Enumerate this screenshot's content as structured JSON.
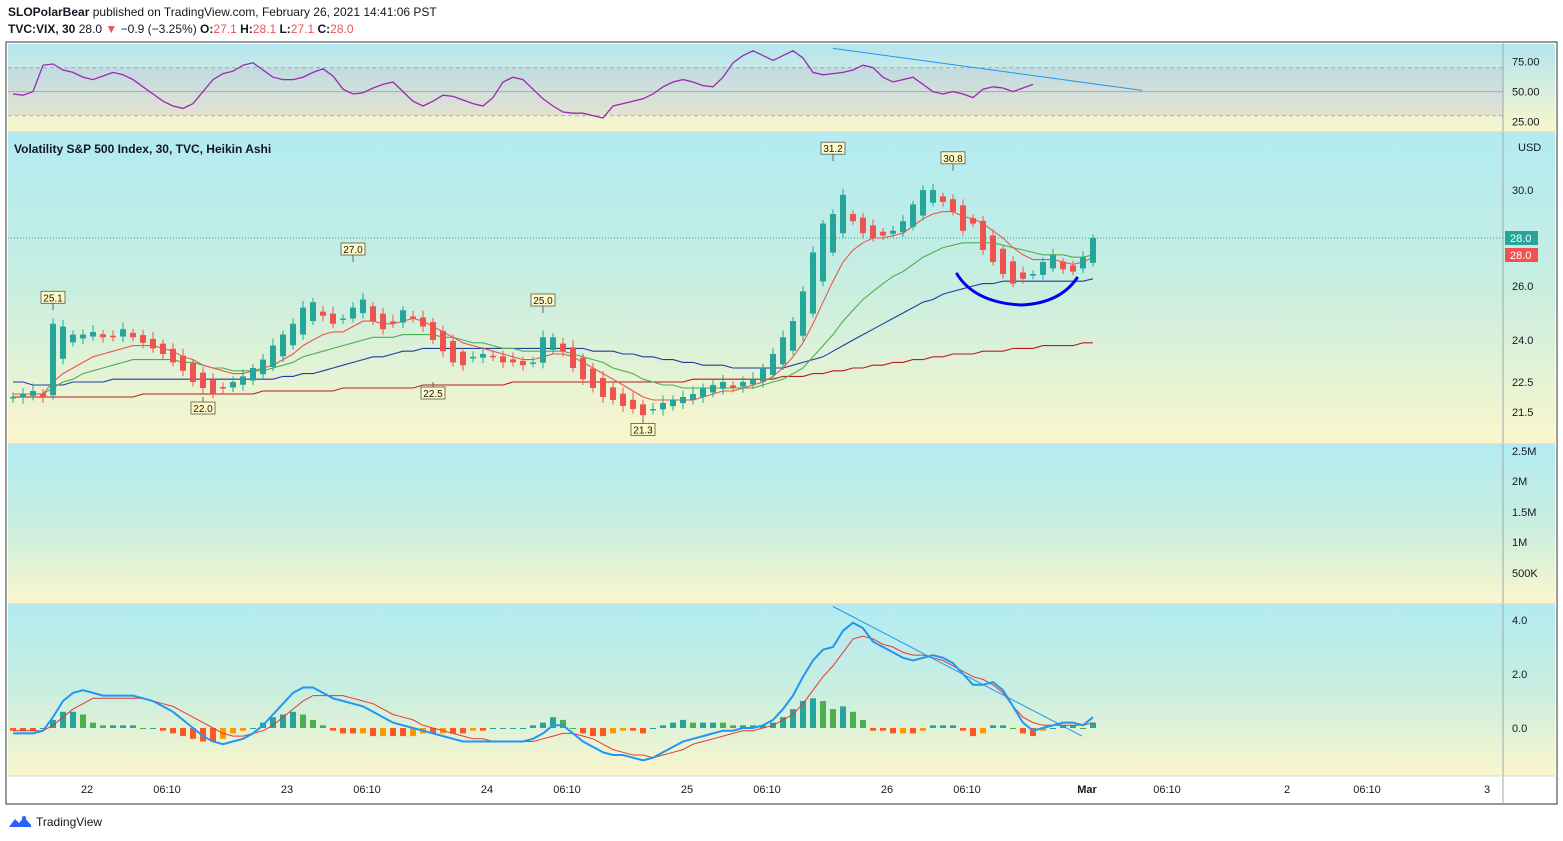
{
  "header": {
    "publisher": "SLOPolarBear",
    "published_text": "published on TradingView.com, February 26, 2021 14:41:06 PST",
    "symbol": "TVC:VIX, 30",
    "last": "28.0",
    "change": "−0.9 (−3.25%)",
    "o_label": "O:",
    "o": "27.1",
    "h_label": "H:",
    "h": "28.1",
    "l_label": "L:",
    "l": "27.1",
    "c_label": "C:",
    "c": "28.0"
  },
  "main_title": "Volatility S&P 500 Index, 30, TVC, Heikin Ashi",
  "footer_brand": "TradingView",
  "colors": {
    "up": "#26a69a",
    "down": "#ef5350",
    "ema_fast": "#ef5350",
    "ema_mid": "#4caf50",
    "ema_slow": "#1e3fa0",
    "sma_long": "#b71c1c",
    "rsi": "#9c27b0",
    "macd": "#2196f3",
    "signal": "#e53935",
    "hist_up": "#26a69a",
    "hist_up2": "#4caf50",
    "hist_down": "#ff5722",
    "hist_down2": "#ff9800",
    "annotation": "#0000ee"
  },
  "chart_data": [
    {
      "type": "line",
      "name": "rsi-panel",
      "y_ticks": [
        "75.00",
        "50.00",
        "25.00"
      ],
      "y_tick_values": [
        75,
        50,
        25
      ],
      "ylim": [
        18,
        88
      ],
      "bands": [
        70,
        50,
        30
      ],
      "values": [
        48,
        47,
        50,
        72,
        73,
        68,
        66,
        62,
        60,
        63,
        66,
        64,
        60,
        54,
        48,
        42,
        38,
        36,
        40,
        50,
        60,
        65,
        67,
        72,
        74,
        68,
        62,
        60,
        60,
        62,
        66,
        69,
        63,
        52,
        48,
        49,
        53,
        56,
        58,
        50,
        42,
        38,
        42,
        47,
        46,
        43,
        40,
        38,
        45,
        58,
        62,
        60,
        52,
        44,
        38,
        33,
        32,
        32,
        30,
        28,
        38,
        40,
        42,
        44,
        48,
        54,
        58,
        60,
        58,
        55,
        54,
        62,
        74,
        80,
        84,
        80,
        76,
        80,
        84,
        78,
        66,
        64,
        65,
        66,
        68,
        72,
        70,
        62,
        58,
        60,
        62,
        56,
        50,
        48,
        50,
        48,
        45,
        52,
        54,
        53,
        50,
        53,
        56
      ]
    },
    {
      "type": "candlestick",
      "name": "price-panel",
      "currency": "USD",
      "y_ticks": [
        "30.0",
        "26.0",
        "24.0",
        "22.5",
        "21.5"
      ],
      "y_tick_values": [
        30,
        26,
        24,
        22.5,
        21.5
      ],
      "last_price": "28.0",
      "last_price_value": 28.0,
      "x_ticks": [
        "22",
        "06:10",
        "23",
        "06:10",
        "24",
        "06:10",
        "25",
        "06:10",
        "26",
        "06:10",
        "Mar",
        "06:10",
        "2",
        "06:10",
        "3"
      ],
      "x_tick_bars": [
        4,
        12,
        24,
        32,
        44,
        52,
        64,
        72,
        84,
        92,
        104,
        112,
        124,
        132,
        144
      ],
      "labels": [
        {
          "text": "25.1",
          "bar": 4,
          "value": 25.1,
          "side": "above"
        },
        {
          "text": "22.0",
          "bar": 19,
          "value": 22.0,
          "side": "below"
        },
        {
          "text": "27.0",
          "bar": 34,
          "value": 27.0,
          "side": "above"
        },
        {
          "text": "22.5",
          "bar": 42,
          "value": 22.5,
          "side": "below"
        },
        {
          "text": "25.0",
          "bar": 53,
          "value": 25.0,
          "side": "above"
        },
        {
          "text": "21.3",
          "bar": 63,
          "value": 21.3,
          "side": "below"
        },
        {
          "text": "31.2",
          "bar": 82,
          "value": 31.2,
          "side": "above"
        },
        {
          "text": "30.8",
          "bar": 94,
          "value": 30.8,
          "side": "above"
        }
      ],
      "closes": [
        22.0,
        22.1,
        22.2,
        22.0,
        24.6,
        24.5,
        24.2,
        24.2,
        24.3,
        24.1,
        24.1,
        24.4,
        24.1,
        23.9,
        23.7,
        23.5,
        23.2,
        22.9,
        22.5,
        22.3,
        22.1,
        22.3,
        22.5,
        22.7,
        23.0,
        23.3,
        23.8,
        24.2,
        24.6,
        25.2,
        25.4,
        24.9,
        24.6,
        24.8,
        25.2,
        25.5,
        24.7,
        24.4,
        24.6,
        25.1,
        24.8,
        24.5,
        24.0,
        23.6,
        23.2,
        23.1,
        23.4,
        23.5,
        23.4,
        23.2,
        23.2,
        23.1,
        23.2,
        24.1,
        24.1,
        23.6,
        23.0,
        22.6,
        22.3,
        22.0,
        21.9,
        21.7,
        21.6,
        21.4,
        21.6,
        21.8,
        21.9,
        22.0,
        22.1,
        22.3,
        22.4,
        22.5,
        22.3,
        22.5,
        22.6,
        23.0,
        23.5,
        24.1,
        24.7,
        25.8,
        27.4,
        28.6,
        29.0,
        29.8,
        28.7,
        28.2,
        28.0,
        28.1,
        28.3,
        28.7,
        29.4,
        30.0,
        30.0,
        29.5,
        29.1,
        28.3,
        28.6,
        27.5,
        27.0,
        26.5,
        26.1,
        26.3,
        26.5,
        27.0,
        27.3,
        26.7,
        26.6,
        27.2,
        28.0
      ],
      "ema_fast": [
        22.1,
        22.1,
        22.1,
        22.1,
        22.5,
        22.8,
        23.0,
        23.2,
        23.4,
        23.5,
        23.6,
        23.7,
        23.8,
        23.8,
        23.8,
        23.7,
        23.6,
        23.4,
        23.3,
        23.1,
        23.0,
        22.9,
        22.8,
        22.8,
        22.9,
        23.0,
        23.1,
        23.3,
        23.5,
        23.8,
        24.0,
        24.2,
        24.3,
        24.3,
        24.5,
        24.7,
        24.7,
        24.6,
        24.6,
        24.7,
        24.8,
        24.7,
        24.5,
        24.3,
        24.1,
        23.9,
        23.8,
        23.7,
        23.6,
        23.5,
        23.4,
        23.3,
        23.3,
        23.4,
        23.5,
        23.5,
        23.4,
        23.2,
        23.0,
        22.8,
        22.6,
        22.4,
        22.2,
        22.0,
        21.9,
        21.9,
        21.9,
        21.9,
        21.9,
        22.0,
        22.1,
        22.2,
        22.2,
        22.3,
        22.4,
        22.5,
        22.7,
        23.0,
        23.4,
        23.9,
        24.6,
        25.4,
        26.2,
        27.0,
        27.5,
        27.8,
        28.0,
        28.0,
        28.1,
        28.2,
        28.5,
        28.8,
        29.0,
        29.1,
        29.1,
        28.9,
        28.8,
        28.6,
        28.3,
        28.0,
        27.6,
        27.3,
        27.1,
        27.1,
        27.1,
        27.0,
        26.9,
        27.0,
        27.2
      ],
      "ema_mid": [
        22.1,
        22.1,
        22.1,
        22.1,
        22.3,
        22.5,
        22.6,
        22.8,
        22.9,
        23.0,
        23.1,
        23.2,
        23.3,
        23.3,
        23.3,
        23.3,
        23.3,
        23.2,
        23.2,
        23.1,
        23.0,
        23.0,
        22.9,
        22.9,
        22.9,
        22.9,
        23.0,
        23.1,
        23.2,
        23.4,
        23.5,
        23.6,
        23.7,
        23.8,
        23.9,
        24.0,
        24.1,
        24.1,
        24.1,
        24.2,
        24.2,
        24.2,
        24.2,
        24.1,
        24.1,
        24.0,
        23.9,
        23.9,
        23.8,
        23.7,
        23.7,
        23.6,
        23.6,
        23.6,
        23.6,
        23.6,
        23.5,
        23.4,
        23.3,
        23.2,
        23.0,
        22.9,
        22.8,
        22.6,
        22.5,
        22.4,
        22.4,
        22.3,
        22.3,
        22.3,
        22.3,
        22.3,
        22.3,
        22.3,
        22.3,
        22.4,
        22.5,
        22.6,
        22.8,
        23.0,
        23.4,
        23.8,
        24.2,
        24.7,
        25.1,
        25.5,
        25.8,
        26.1,
        26.4,
        26.6,
        26.9,
        27.2,
        27.4,
        27.6,
        27.7,
        27.8,
        27.8,
        27.8,
        27.8,
        27.7,
        27.6,
        27.5,
        27.4,
        27.3,
        27.3,
        27.3,
        27.2,
        27.2,
        27.3
      ],
      "ema_slow": [
        22.5,
        22.5,
        22.4,
        22.4,
        22.4,
        22.4,
        22.5,
        22.5,
        22.5,
        22.5,
        22.6,
        22.6,
        22.6,
        22.6,
        22.6,
        22.6,
        22.6,
        22.6,
        22.6,
        22.6,
        22.6,
        22.6,
        22.6,
        22.6,
        22.6,
        22.6,
        22.6,
        22.7,
        22.7,
        22.8,
        22.8,
        22.9,
        23.0,
        23.1,
        23.2,
        23.3,
        23.4,
        23.4,
        23.5,
        23.6,
        23.6,
        23.7,
        23.7,
        23.7,
        23.7,
        23.7,
        23.7,
        23.7,
        23.7,
        23.7,
        23.7,
        23.7,
        23.7,
        23.7,
        23.7,
        23.7,
        23.7,
        23.7,
        23.6,
        23.6,
        23.6,
        23.5,
        23.5,
        23.4,
        23.4,
        23.3,
        23.3,
        23.2,
        23.2,
        23.1,
        23.1,
        23.1,
        23.0,
        23.0,
        23.0,
        23.0,
        23.0,
        23.0,
        23.1,
        23.2,
        23.3,
        23.4,
        23.6,
        23.8,
        24.0,
        24.2,
        24.4,
        24.6,
        24.8,
        25.0,
        25.2,
        25.4,
        25.5,
        25.7,
        25.8,
        25.9,
        26.0,
        26.1,
        26.1,
        26.2,
        26.2,
        26.2,
        26.2,
        26.2,
        26.2,
        26.2,
        26.2,
        26.2,
        26.3
      ],
      "sma_long": [
        22.0,
        22.0,
        22.0,
        22.0,
        22.0,
        22.0,
        22.0,
        22.0,
        22.0,
        22.0,
        22.0,
        22.0,
        22.0,
        22.1,
        22.1,
        22.1,
        22.1,
        22.1,
        22.1,
        22.1,
        22.1,
        22.1,
        22.1,
        22.1,
        22.1,
        22.2,
        22.2,
        22.2,
        22.2,
        22.2,
        22.2,
        22.2,
        22.2,
        22.3,
        22.3,
        22.3,
        22.3,
        22.3,
        22.3,
        22.3,
        22.3,
        22.4,
        22.4,
        22.4,
        22.4,
        22.4,
        22.4,
        22.4,
        22.4,
        22.4,
        22.5,
        22.5,
        22.5,
        22.5,
        22.5,
        22.5,
        22.5,
        22.5,
        22.5,
        22.5,
        22.5,
        22.5,
        22.5,
        22.5,
        22.5,
        22.5,
        22.5,
        22.5,
        22.6,
        22.6,
        22.6,
        22.6,
        22.6,
        22.6,
        22.6,
        22.6,
        22.6,
        22.7,
        22.7,
        22.7,
        22.8,
        22.8,
        22.9,
        22.9,
        23.0,
        23.0,
        23.1,
        23.1,
        23.2,
        23.2,
        23.3,
        23.3,
        23.4,
        23.4,
        23.5,
        23.5,
        23.5,
        23.6,
        23.6,
        23.6,
        23.7,
        23.7,
        23.7,
        23.8,
        23.8,
        23.8,
        23.8,
        23.9,
        23.9
      ]
    },
    {
      "type": "bar",
      "name": "volume-panel",
      "y_ticks": [
        "2.5M",
        "2M",
        "1.5M",
        "1M",
        "500K"
      ],
      "values": []
    },
    {
      "type": "line",
      "name": "macd-panel",
      "y_ticks": [
        "4.0",
        "2.0",
        "0.0"
      ],
      "y_tick_values": [
        4,
        2,
        0
      ],
      "macd": [
        -0.2,
        -0.2,
        -0.2,
        -0.1,
        0.4,
        1.0,
        1.3,
        1.4,
        1.3,
        1.2,
        1.2,
        1.2,
        1.2,
        1.1,
        1.0,
        0.8,
        0.6,
        0.3,
        0.0,
        -0.3,
        -0.5,
        -0.6,
        -0.5,
        -0.4,
        -0.2,
        0.1,
        0.5,
        0.9,
        1.3,
        1.5,
        1.5,
        1.3,
        1.1,
        1.0,
        0.9,
        0.8,
        0.6,
        0.4,
        0.2,
        0.1,
        0.0,
        -0.1,
        -0.2,
        -0.3,
        -0.4,
        -0.5,
        -0.5,
        -0.5,
        -0.5,
        -0.5,
        -0.5,
        -0.5,
        -0.4,
        -0.2,
        0.1,
        0.1,
        -0.2,
        -0.5,
        -0.7,
        -0.9,
        -1.0,
        -1.0,
        -1.1,
        -1.2,
        -1.1,
        -0.9,
        -0.7,
        -0.5,
        -0.4,
        -0.3,
        -0.2,
        -0.1,
        -0.1,
        0.0,
        0.0,
        0.1,
        0.3,
        0.7,
        1.2,
        1.9,
        2.5,
        2.9,
        3.0,
        3.6,
        3.9,
        3.7,
        3.2,
        3.0,
        2.8,
        2.6,
        2.5,
        2.6,
        2.7,
        2.6,
        2.4,
        2.0,
        1.6,
        1.6,
        1.7,
        1.4,
        0.8,
        0.2,
        -0.1,
        0.0,
        0.1,
        0.2,
        0.2,
        0.1,
        0.4
      ],
      "signal": [
        -0.1,
        -0.1,
        -0.1,
        -0.1,
        0.1,
        0.4,
        0.7,
        0.9,
        1.1,
        1.1,
        1.1,
        1.1,
        1.1,
        1.1,
        1.0,
        0.9,
        0.8,
        0.6,
        0.4,
        0.2,
        0.0,
        -0.2,
        -0.3,
        -0.3,
        -0.2,
        -0.1,
        0.1,
        0.4,
        0.7,
        1.0,
        1.2,
        1.2,
        1.2,
        1.2,
        1.1,
        1.0,
        0.9,
        0.7,
        0.5,
        0.4,
        0.3,
        0.1,
        0.0,
        -0.1,
        -0.2,
        -0.3,
        -0.4,
        -0.4,
        -0.5,
        -0.5,
        -0.5,
        -0.5,
        -0.5,
        -0.4,
        -0.3,
        -0.2,
        -0.2,
        -0.3,
        -0.4,
        -0.6,
        -0.8,
        -0.9,
        -1.0,
        -1.0,
        -1.1,
        -1.0,
        -0.9,
        -0.8,
        -0.6,
        -0.5,
        -0.4,
        -0.3,
        -0.2,
        -0.1,
        -0.1,
        0.0,
        0.1,
        0.3,
        0.5,
        0.9,
        1.4,
        1.9,
        2.3,
        2.8,
        3.3,
        3.4,
        3.3,
        3.1,
        3.0,
        2.8,
        2.7,
        2.7,
        2.6,
        2.5,
        2.3,
        2.1,
        1.9,
        1.8,
        1.6,
        1.3,
        0.8,
        0.4,
        0.2,
        0.1,
        0.1,
        0.1,
        0.1,
        0.1,
        0.2
      ]
    }
  ]
}
